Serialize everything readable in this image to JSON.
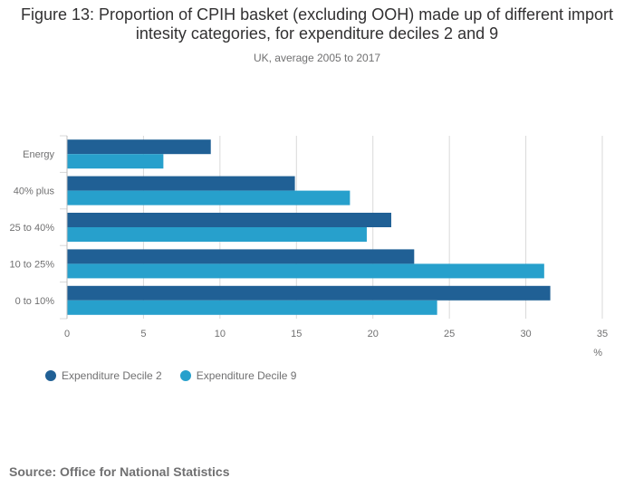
{
  "title": "Figure 13: Proportion of CPIH basket (excluding OOH) made up of different import intesity categories, for expenditure deciles 2 and 9",
  "subtitle": "UK, average 2005 to 2017",
  "source": "Source: Office for National Statistics",
  "colors": {
    "series_1": "#206095",
    "series_2": "#27a0cc",
    "grid": "#d9d9d9",
    "axis_text": "#707071"
  },
  "chart_data": {
    "type": "bar",
    "orientation": "horizontal",
    "categories": [
      "Energy",
      "40% plus",
      "25 to 40%",
      "10 to 25%",
      "0 to 10%"
    ],
    "series": [
      {
        "name": "Expenditure Decile 2",
        "values": [
          9.4,
          14.9,
          21.2,
          22.7,
          31.6
        ]
      },
      {
        "name": "Expenditure Decile 9",
        "values": [
          6.3,
          18.5,
          19.6,
          31.2,
          24.2
        ]
      }
    ],
    "xlim": [
      0,
      35
    ],
    "xticks": [
      0,
      5,
      10,
      15,
      20,
      25,
      30,
      35
    ],
    "xlabel": "%",
    "grid": true,
    "legend_position": "bottom-left"
  }
}
